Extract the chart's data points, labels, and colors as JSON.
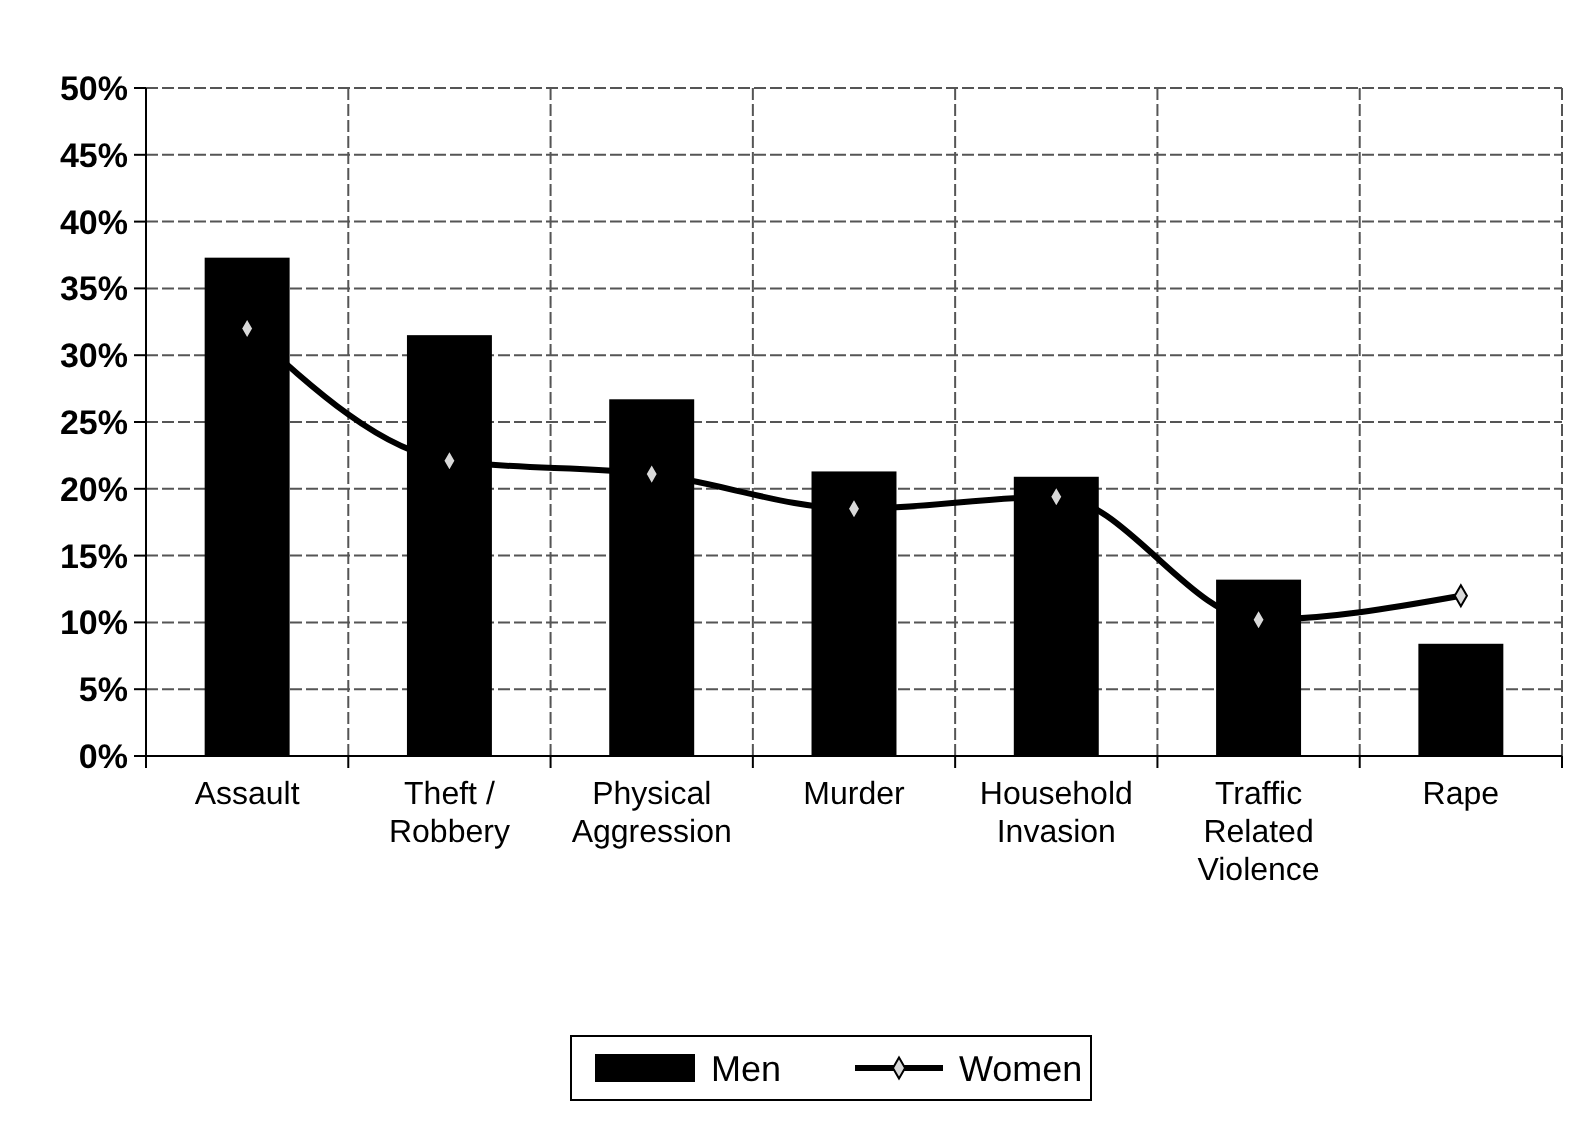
{
  "chart_data": {
    "type": "bar",
    "categories": [
      "Assault",
      "Theft / Robbery",
      "Physical Aggression",
      "Murder",
      "Household Invasion",
      "Traffic Related Violence",
      "Rape"
    ],
    "series": [
      {
        "name": "Men",
        "color": "#000000",
        "values": [
          37.3,
          31.5,
          26.7,
          21.3,
          20.9,
          13.2,
          8.4
        ]
      },
      {
        "name": "Women",
        "type": "line",
        "color": "#000000",
        "marker": "diamond",
        "values": [
          32,
          22.1,
          21.1,
          18.5,
          19.4,
          10.2,
          12
        ]
      }
    ],
    "ylim": [
      0,
      50
    ],
    "yticks": [
      {
        "value": 0,
        "label": "0%"
      },
      {
        "value": 5,
        "label": "5%"
      },
      {
        "value": 10,
        "label": "10%"
      },
      {
        "value": 15,
        "label": "15%"
      },
      {
        "value": 20,
        "label": "20%"
      },
      {
        "value": 25,
        "label": "25%"
      },
      {
        "value": 30,
        "label": "30%"
      },
      {
        "value": 35,
        "label": "35%"
      },
      {
        "value": 40,
        "label": "40%"
      },
      {
        "value": 45,
        "label": "45%"
      },
      {
        "value": 50,
        "label": "50%"
      }
    ],
    "grid": true,
    "legend": "bottom"
  }
}
